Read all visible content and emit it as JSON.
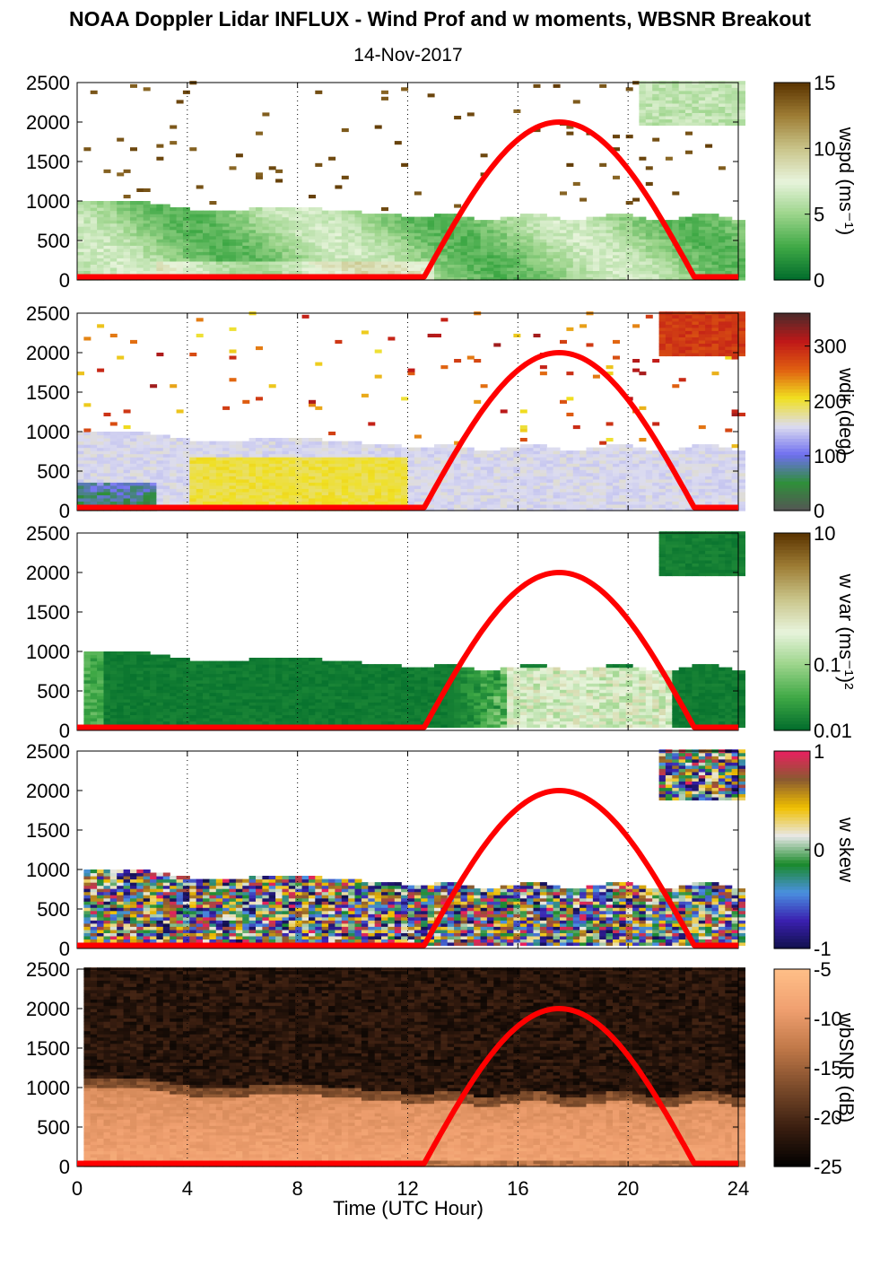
{
  "title": "NOAA Doppler Lidar INFLUX - Wind Prof and w moments, WBSNR Breakout",
  "subtitle": "14-Nov-2017",
  "xlabel": "Time (UTC Hour)",
  "chart_data": [
    {
      "type": "heatmap",
      "name": "wspd",
      "colorbar_label": "wspd (ms⁻¹)",
      "colorbar_ticks": [
        "0",
        "5",
        "10",
        "15"
      ],
      "colorbar_range": [
        0,
        15
      ],
      "xlim": [
        0,
        24
      ],
      "ylim": [
        0,
        2500
      ],
      "xticks": [
        "0",
        "4",
        "8",
        "12",
        "16",
        "20",
        "24"
      ],
      "yticks": [
        "0",
        "500",
        "1000",
        "1500",
        "2000",
        "2500"
      ],
      "colormap": [
        "#006b2b",
        "#3ea845",
        "#9bd48a",
        "#e8f4dc",
        "#c9c58a",
        "#9e7d35",
        "#5a3300"
      ],
      "grid": "dotted vertical at 4, 8, 12, 16, 20",
      "overlay": "sun elevation curve (red) peaking near 17.5 UTC"
    },
    {
      "type": "heatmap",
      "name": "wdir",
      "colorbar_label": "wdir (deg)",
      "colorbar_ticks": [
        "0",
        "100",
        "200",
        "300"
      ],
      "colorbar_range": [
        0,
        360
      ],
      "xlim": [
        0,
        24
      ],
      "ylim": [
        0,
        2500
      ],
      "xticks": [
        "0",
        "4",
        "8",
        "12",
        "16",
        "20",
        "24"
      ],
      "yticks": [
        "0",
        "500",
        "1000",
        "1500",
        "2000",
        "2500"
      ],
      "colormap": [
        "#555555",
        "#2f8f3a",
        "#6f6ff0",
        "#dcdcf0",
        "#f0e020",
        "#e06010",
        "#c01818",
        "#4a2a2a"
      ],
      "grid": "dotted vertical at 4, 8, 12, 16, 20",
      "overlay": "sun elevation curve (red) peaking near 17.5 UTC"
    },
    {
      "type": "heatmap",
      "name": "w var",
      "colorbar_label": "w var (ms⁻¹)²",
      "colorbar_ticks": [
        "0.01",
        "0.1",
        "10"
      ],
      "colorbar_scale": "log",
      "colorbar_range": [
        0.01,
        10
      ],
      "xlim": [
        0,
        24
      ],
      "ylim": [
        0,
        2500
      ],
      "xticks": [
        "0",
        "4",
        "8",
        "12",
        "16",
        "20",
        "24"
      ],
      "yticks": [
        "0",
        "500",
        "1000",
        "1500",
        "2000",
        "2500"
      ],
      "colormap": [
        "#006b2b",
        "#3ea845",
        "#9bd48a",
        "#e8f4dc",
        "#c9c58a",
        "#9e7d35",
        "#5a3300"
      ],
      "grid": "dotted vertical at 4, 8, 12, 16, 20",
      "overlay": "sun elevation curve (red) peaking near 17.5 UTC"
    },
    {
      "type": "heatmap",
      "name": "w skew",
      "colorbar_label": "w skew",
      "colorbar_ticks": [
        "-1",
        "0",
        "1"
      ],
      "colorbar_range": [
        -1,
        1
      ],
      "xlim": [
        0,
        24
      ],
      "ylim": [
        0,
        2500
      ],
      "xticks": [
        "0",
        "4",
        "8",
        "12",
        "16",
        "20",
        "24"
      ],
      "yticks": [
        "0",
        "500",
        "1000",
        "1500",
        "2000",
        "2500"
      ],
      "colormap": [
        "#10104a",
        "#3a20b0",
        "#4a90e0",
        "#1a8a2a",
        "#e8e8e8",
        "#f0c000",
        "#8a5a30",
        "#e82060"
      ],
      "grid": "dotted vertical at 4, 8, 12, 16, 20",
      "overlay": "sun elevation curve (red) peaking near 17.5 UTC"
    },
    {
      "type": "heatmap",
      "name": "wbSNR",
      "colorbar_label": "wbSNR (dB)",
      "colorbar_ticks": [
        "-25",
        "-20",
        "-15",
        "-10",
        "-5"
      ],
      "colorbar_range": [
        -25,
        -5
      ],
      "xlim": [
        0,
        24
      ],
      "ylim": [
        0,
        2500
      ],
      "xticks": [
        "0",
        "4",
        "8",
        "12",
        "16",
        "20",
        "24"
      ],
      "yticks": [
        "0",
        "500",
        "1000",
        "1500",
        "2000",
        "2500"
      ],
      "colormap": [
        "#000000",
        "#3a1e10",
        "#7a4a2a",
        "#c07848",
        "#f0a070",
        "#ffbf88"
      ],
      "grid": "dotted vertical at 4, 8, 12, 16, 20",
      "overlay": "sun elevation curve (red) peaking near 17.5 UTC"
    }
  ]
}
